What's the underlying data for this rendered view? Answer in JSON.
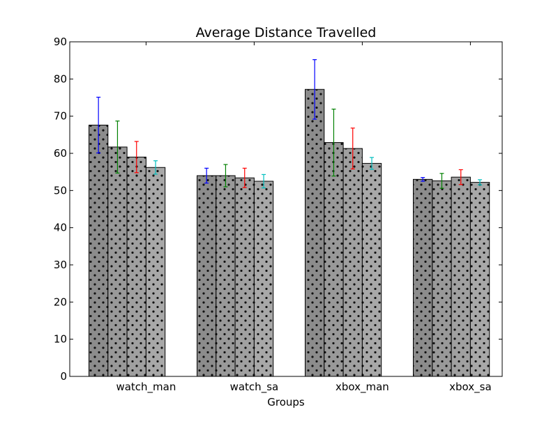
{
  "chart_data": {
    "type": "bar",
    "title": "Average Distance Travelled",
    "xlabel": "Groups",
    "ylabel": "",
    "ylim": [
      0,
      90
    ],
    "yticks": [
      0,
      10,
      20,
      30,
      40,
      50,
      60,
      70,
      80,
      90
    ],
    "categories": [
      "watch_man",
      "watch_sa",
      "xbox_man",
      "xbox_sa"
    ],
    "grid": false,
    "bar_fills": [
      "#8c8c8c",
      "#999999",
      "#a0a0a0",
      "#a8a8a8"
    ],
    "error_colors": [
      "#0000ff",
      "#008000",
      "#ff0000",
      "#00bfbf"
    ],
    "series": [
      {
        "values": [
          67.6,
          54.0,
          77.2,
          53.0
        ],
        "errors": [
          7.5,
          2.0,
          8.0,
          0.5
        ]
      },
      {
        "values": [
          61.7,
          54.0,
          62.9,
          52.6
        ],
        "errors": [
          7.0,
          3.0,
          9.0,
          2.0
        ]
      },
      {
        "values": [
          59.0,
          53.4,
          61.3,
          53.6
        ],
        "errors": [
          4.2,
          2.6,
          5.5,
          2.0
        ]
      },
      {
        "values": [
          56.2,
          52.5,
          57.3,
          52.2
        ],
        "errors": [
          1.8,
          1.8,
          1.6,
          0.7
        ]
      }
    ]
  }
}
